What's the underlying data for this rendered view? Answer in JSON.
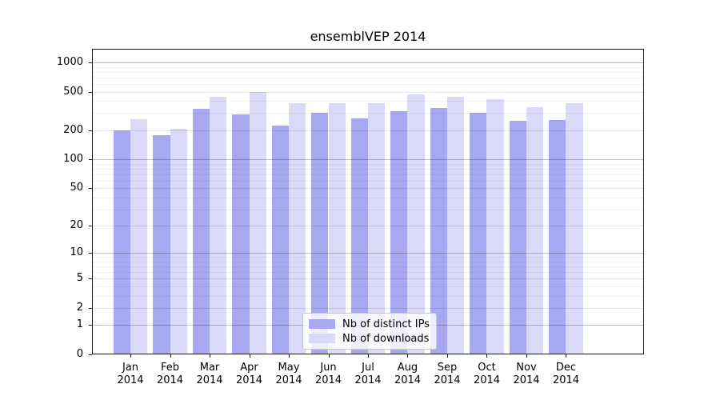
{
  "chart_data": {
    "type": "bar",
    "title": "ensemblVEP 2014",
    "categories": [
      "Jan",
      "Feb",
      "Mar",
      "Apr",
      "May",
      "Jun",
      "Jul",
      "Aug",
      "Sep",
      "Oct",
      "Nov",
      "Dec"
    ],
    "category_year": "2014",
    "series": [
      {
        "name": "Nb of distinct IPs",
        "color": "#a8a8f0",
        "values": [
          200,
          178,
          330,
          293,
          222,
          300,
          263,
          315,
          340,
          305,
          250,
          255
        ]
      },
      {
        "name": "Nb of downloads",
        "color": "#dadaf8",
        "values": [
          260,
          207,
          445,
          497,
          380,
          380,
          378,
          472,
          445,
          420,
          343,
          383
        ]
      }
    ],
    "yscale": "log1p",
    "yticks": [
      1000,
      500,
      200,
      100,
      50,
      20,
      10,
      5,
      2,
      1,
      0
    ],
    "ylim": [
      0,
      1380
    ],
    "grid": true,
    "legend_position": "lower center"
  },
  "colors": {
    "distinct_ips": "#a8a8f0",
    "downloads": "#dadaf8",
    "grid_decade": "#c2c2c2",
    "grid_minor": "#f0f0f0",
    "axis": "#1a1a1a"
  }
}
